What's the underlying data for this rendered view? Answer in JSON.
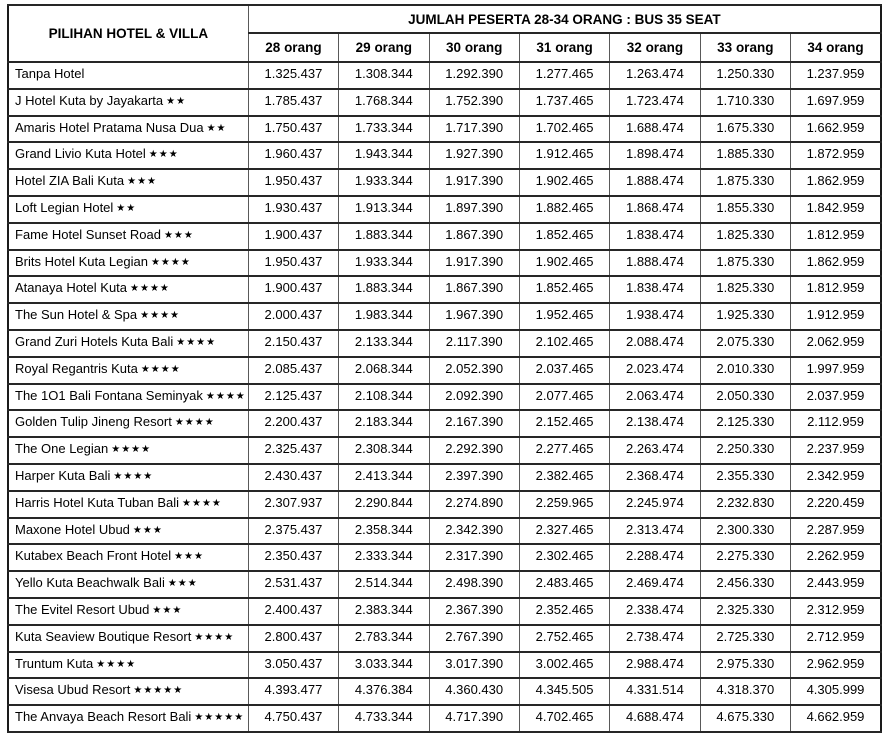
{
  "colors": {
    "background": "#ffffff",
    "text": "#000000",
    "border_outer": "#1a1a1a",
    "border_horizontal": "#262626",
    "border_vertical": "#595959"
  },
  "table": {
    "corner_header": "PILIHAN HOTEL & VILLA",
    "group_header": "JUMLAH PESERTA 28-34 ORANG : BUS 35 SEAT",
    "columns": [
      "28 orang",
      "29 orang",
      "30 orang",
      "31 orang",
      "32 orang",
      "33 orang",
      "34 orang"
    ],
    "star_symbol": "★",
    "rows": [
      {
        "hotel": "Tanpa Hotel",
        "stars": 0,
        "prices": [
          "1.325.437",
          "1.308.344",
          "1.292.390",
          "1.277.465",
          "1.263.474",
          "1.250.330",
          "1.237.959"
        ]
      },
      {
        "hotel": "J Hotel Kuta by Jayakarta",
        "stars": 2,
        "prices": [
          "1.785.437",
          "1.768.344",
          "1.752.390",
          "1.737.465",
          "1.723.474",
          "1.710.330",
          "1.697.959"
        ]
      },
      {
        "hotel": "Amaris Hotel Pratama Nusa Dua",
        "stars": 2,
        "prices": [
          "1.750.437",
          "1.733.344",
          "1.717.390",
          "1.702.465",
          "1.688.474",
          "1.675.330",
          "1.662.959"
        ]
      },
      {
        "hotel": "Grand Livio Kuta Hotel",
        "stars": 3,
        "prices": [
          "1.960.437",
          "1.943.344",
          "1.927.390",
          "1.912.465",
          "1.898.474",
          "1.885.330",
          "1.872.959"
        ]
      },
      {
        "hotel": "Hotel ZIA Bali Kuta",
        "stars": 3,
        "prices": [
          "1.950.437",
          "1.933.344",
          "1.917.390",
          "1.902.465",
          "1.888.474",
          "1.875.330",
          "1.862.959"
        ]
      },
      {
        "hotel": "Loft Legian Hotel",
        "stars": 2,
        "prices": [
          "1.930.437",
          "1.913.344",
          "1.897.390",
          "1.882.465",
          "1.868.474",
          "1.855.330",
          "1.842.959"
        ]
      },
      {
        "hotel": "Fame Hotel Sunset Road",
        "stars": 3,
        "prices": [
          "1.900.437",
          "1.883.344",
          "1.867.390",
          "1.852.465",
          "1.838.474",
          "1.825.330",
          "1.812.959"
        ]
      },
      {
        "hotel": "Brits Hotel Kuta Legian",
        "stars": 4,
        "prices": [
          "1.950.437",
          "1.933.344",
          "1.917.390",
          "1.902.465",
          "1.888.474",
          "1.875.330",
          "1.862.959"
        ]
      },
      {
        "hotel": "Atanaya Hotel Kuta",
        "stars": 4,
        "prices": [
          "1.900.437",
          "1.883.344",
          "1.867.390",
          "1.852.465",
          "1.838.474",
          "1.825.330",
          "1.812.959"
        ]
      },
      {
        "hotel": "The Sun Hotel & Spa",
        "stars": 4,
        "prices": [
          "2.000.437",
          "1.983.344",
          "1.967.390",
          "1.952.465",
          "1.938.474",
          "1.925.330",
          "1.912.959"
        ]
      },
      {
        "hotel": "Grand Zuri Hotels Kuta Bali",
        "stars": 4,
        "prices": [
          "2.150.437",
          "2.133.344",
          "2.117.390",
          "2.102.465",
          "2.088.474",
          "2.075.330",
          "2.062.959"
        ]
      },
      {
        "hotel": "Royal Regantris Kuta",
        "stars": 4,
        "prices": [
          "2.085.437",
          "2.068.344",
          "2.052.390",
          "2.037.465",
          "2.023.474",
          "2.010.330",
          "1.997.959"
        ]
      },
      {
        "hotel": "The 1O1 Bali Fontana Seminyak",
        "stars": 4,
        "prices": [
          "2.125.437",
          "2.108.344",
          "2.092.390",
          "2.077.465",
          "2.063.474",
          "2.050.330",
          "2.037.959"
        ]
      },
      {
        "hotel": "Golden Tulip Jineng Resort",
        "stars": 4,
        "prices": [
          "2.200.437",
          "2.183.344",
          "2.167.390",
          "2.152.465",
          "2.138.474",
          "2.125.330",
          "2.112.959"
        ]
      },
      {
        "hotel": "The One Legian",
        "stars": 4,
        "prices": [
          "2.325.437",
          "2.308.344",
          "2.292.390",
          "2.277.465",
          "2.263.474",
          "2.250.330",
          "2.237.959"
        ]
      },
      {
        "hotel": "Harper Kuta Bali",
        "stars": 4,
        "prices": [
          "2.430.437",
          "2.413.344",
          "2.397.390",
          "2.382.465",
          "2.368.474",
          "2.355.330",
          "2.342.959"
        ]
      },
      {
        "hotel": "Harris Hotel Kuta Tuban Bali",
        "stars": 4,
        "prices": [
          "2.307.937",
          "2.290.844",
          "2.274.890",
          "2.259.965",
          "2.245.974",
          "2.232.830",
          "2.220.459"
        ]
      },
      {
        "hotel": "Maxone Hotel Ubud",
        "stars": 3,
        "prices": [
          "2.375.437",
          "2.358.344",
          "2.342.390",
          "2.327.465",
          "2.313.474",
          "2.300.330",
          "2.287.959"
        ]
      },
      {
        "hotel": "Kutabex Beach Front Hotel",
        "stars": 3,
        "prices": [
          "2.350.437",
          "2.333.344",
          "2.317.390",
          "2.302.465",
          "2.288.474",
          "2.275.330",
          "2.262.959"
        ]
      },
      {
        "hotel": "Yello Kuta Beachwalk Bali",
        "stars": 3,
        "prices": [
          "2.531.437",
          "2.514.344",
          "2.498.390",
          "2.483.465",
          "2.469.474",
          "2.456.330",
          "2.443.959"
        ]
      },
      {
        "hotel": "The Evitel Resort Ubud",
        "stars": 3,
        "prices": [
          "2.400.437",
          "2.383.344",
          "2.367.390",
          "2.352.465",
          "2.338.474",
          "2.325.330",
          "2.312.959"
        ]
      },
      {
        "hotel": "Kuta Seaview Boutique Resort",
        "stars": 4,
        "prices": [
          "2.800.437",
          "2.783.344",
          "2.767.390",
          "2.752.465",
          "2.738.474",
          "2.725.330",
          "2.712.959"
        ]
      },
      {
        "hotel": "Truntum Kuta",
        "stars": 4,
        "prices": [
          "3.050.437",
          "3.033.344",
          "3.017.390",
          "3.002.465",
          "2.988.474",
          "2.975.330",
          "2.962.959"
        ]
      },
      {
        "hotel": "Visesa Ubud Resort",
        "stars": 5,
        "prices": [
          "4.393.477",
          "4.376.384",
          "4.360.430",
          "4.345.505",
          "4.331.514",
          "4.318.370",
          "4.305.999"
        ]
      },
      {
        "hotel": "The Anvaya Beach Resort Bali",
        "stars": 5,
        "prices": [
          "4.750.437",
          "4.733.344",
          "4.717.390",
          "4.702.465",
          "4.688.474",
          "4.675.330",
          "4.662.959"
        ]
      }
    ]
  }
}
